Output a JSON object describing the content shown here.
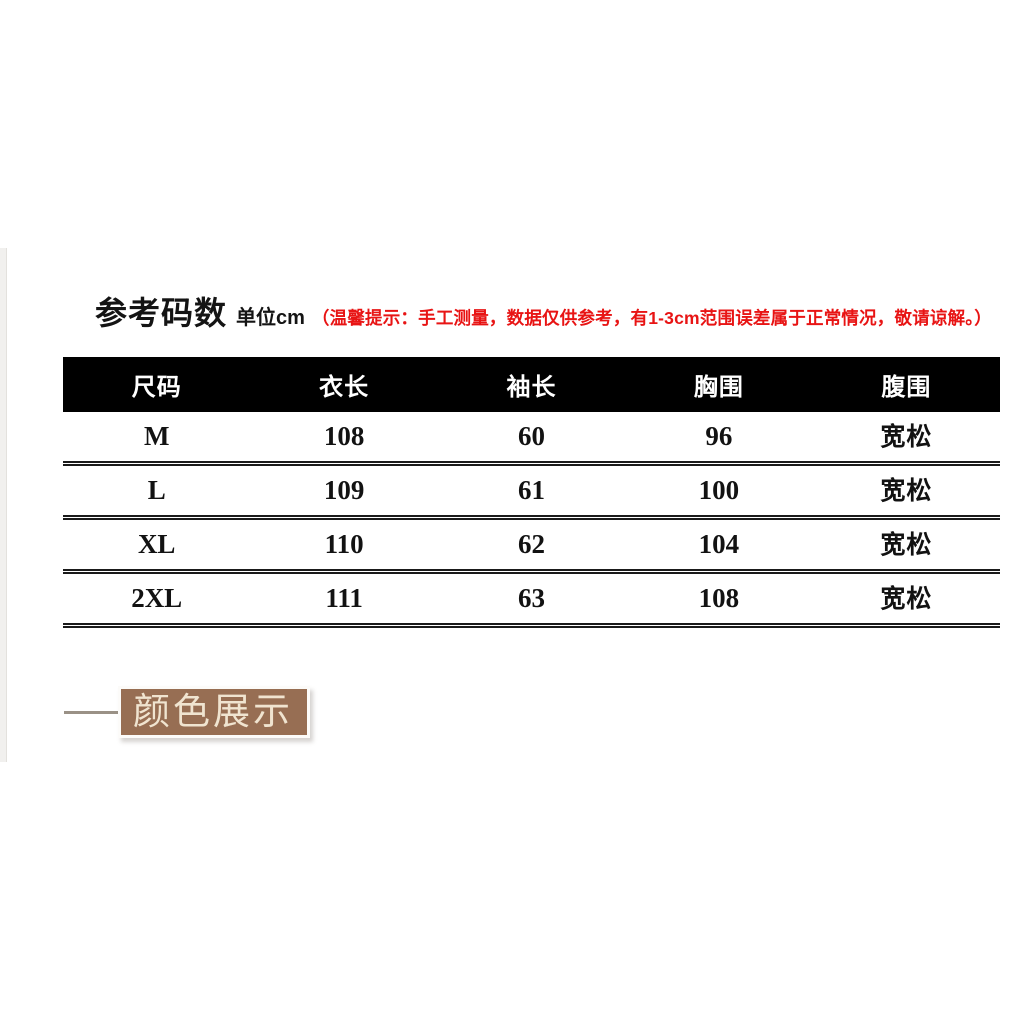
{
  "size_section": {
    "title": "参考码数",
    "unit": "单位cm",
    "note": "（温馨提示：手工测量，数据仅供参考，有1-3cm范围误差属于正常情况，敬请谅解。）",
    "table": {
      "columns": [
        "尺码",
        "衣长",
        "袖长",
        "胸围",
        "腹围"
      ],
      "rows": [
        [
          "M",
          "108",
          "60",
          "96",
          "宽松"
        ],
        [
          "L",
          "109",
          "61",
          "100",
          "宽松"
        ],
        [
          "XL",
          "110",
          "62",
          "104",
          "宽松"
        ],
        [
          "2XL",
          "111",
          "63",
          "108",
          "宽松"
        ]
      ]
    }
  },
  "color_section": {
    "label": "颜色展示"
  },
  "colors": {
    "note_red": "#e81414",
    "header_bg": "#000000",
    "header_text": "#ffffff",
    "label_box_bg": "#976e53",
    "label_text": "#f0e4d0"
  }
}
